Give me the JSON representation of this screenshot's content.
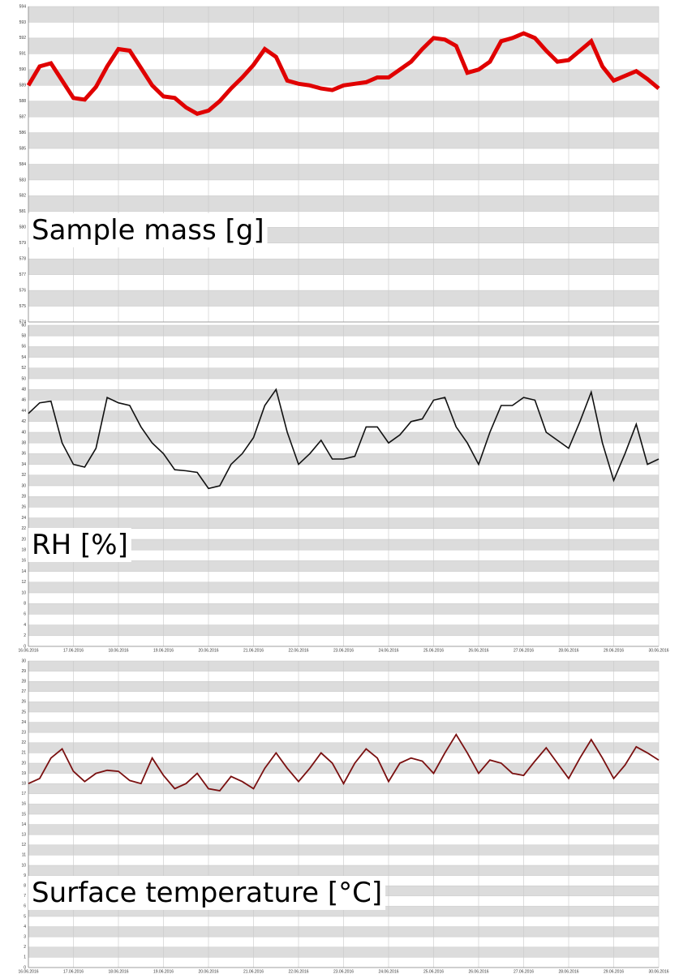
{
  "chart_data": [
    {
      "type": "line",
      "annotation": "Sample mass [g]",
      "color": "#e00000",
      "x": [
        0,
        0.25,
        0.5,
        0.75,
        1,
        1.25,
        1.5,
        1.75,
        2,
        2.25,
        2.5,
        2.75,
        3,
        3.25,
        3.5,
        3.75,
        4,
        4.25,
        4.5,
        4.75,
        5,
        5.25,
        5.5,
        5.75,
        6,
        6.25,
        6.5,
        6.75,
        7,
        7.25,
        7.5,
        7.75,
        8,
        8.25,
        8.5,
        8.75,
        9,
        9.25,
        9.5,
        9.75,
        10,
        10.25,
        10.5,
        10.75,
        11,
        11.25,
        11.5,
        11.75,
        12,
        12.25,
        12.5,
        12.75,
        13,
        13.25,
        13.5,
        13.75,
        14
      ],
      "values": [
        589.0,
        590.2,
        590.4,
        589.3,
        588.2,
        588.1,
        588.9,
        590.2,
        591.3,
        591.2,
        590.1,
        589.0,
        588.3,
        588.2,
        587.6,
        587.2,
        587.4,
        588.0,
        588.8,
        589.5,
        590.3,
        591.3,
        590.8,
        589.3,
        589.1,
        589.0,
        588.8,
        588.7,
        589.0,
        589.1,
        589.2,
        589.5,
        589.5,
        590.0,
        590.5,
        591.3,
        592.0,
        591.9,
        591.5,
        589.8,
        590.0,
        590.5,
        591.8,
        592.0,
        592.3,
        592.0,
        591.2,
        590.5,
        590.6,
        591.2,
        591.8,
        590.2,
        589.3,
        589.6,
        589.9,
        589.4,
        588.8
      ],
      "xlim": [
        0,
        14
      ],
      "xticks": [
        0,
        1,
        2,
        3,
        4,
        5,
        6,
        7,
        8,
        9,
        10,
        11,
        12,
        13,
        14
      ],
      "ylim": [
        574,
        594
      ],
      "yticks": [
        574,
        575,
        576,
        577,
        578,
        579,
        580,
        581,
        582,
        583,
        584,
        585,
        586,
        587,
        588,
        589,
        590,
        591,
        592,
        593,
        594
      ],
      "grid": true
    },
    {
      "type": "line",
      "annotation": "RH [%]",
      "color": "#111111",
      "x": [
        0,
        0.25,
        0.5,
        0.75,
        1,
        1.25,
        1.5,
        1.75,
        2,
        2.25,
        2.5,
        2.75,
        3,
        3.25,
        3.5,
        3.75,
        4,
        4.25,
        4.5,
        4.75,
        5,
        5.25,
        5.5,
        5.75,
        6,
        6.25,
        6.5,
        6.75,
        7,
        7.25,
        7.5,
        7.75,
        8,
        8.25,
        8.5,
        8.75,
        9,
        9.25,
        9.5,
        9.75,
        10,
        10.25,
        10.5,
        10.75,
        11,
        11.25,
        11.5,
        11.75,
        12,
        12.25,
        12.5,
        12.75,
        13,
        13.25,
        13.5,
        13.75,
        14
      ],
      "values": [
        43.5,
        45.5,
        45.8,
        38,
        34,
        33.5,
        37,
        46.5,
        45.5,
        45,
        41,
        38,
        36,
        33,
        32.8,
        32.5,
        29.5,
        30,
        34,
        36,
        39,
        45,
        48,
        40,
        34,
        36,
        38.5,
        35,
        35,
        35.5,
        41,
        41,
        38,
        39.5,
        42,
        42.5,
        46,
        46.5,
        41,
        38,
        34,
        40,
        45,
        45,
        46.5,
        46,
        40,
        38.5,
        37,
        42,
        47.5,
        38,
        31,
        36,
        41.5,
        34,
        35
      ],
      "xlim": [
        0,
        14
      ],
      "xticks": [
        {
          "value": 0,
          "label": "16.06.2016"
        },
        {
          "value": 1,
          "label": "17.06.2016"
        },
        {
          "value": 2,
          "label": "18.06.2016"
        },
        {
          "value": 3,
          "label": "19.06.2016"
        },
        {
          "value": 4,
          "label": "20.06.2016"
        },
        {
          "value": 5,
          "label": "21.06.2016"
        },
        {
          "value": 6,
          "label": "22.06.2016"
        },
        {
          "value": 7,
          "label": "23.06.2016"
        },
        {
          "value": 8,
          "label": "24.06.2016"
        },
        {
          "value": 9,
          "label": "25.06.2016"
        },
        {
          "value": 10,
          "label": "26.06.2016"
        },
        {
          "value": 11,
          "label": "27.06.2016"
        },
        {
          "value": 12,
          "label": "28.06.2016"
        },
        {
          "value": 13,
          "label": "29.06.2016"
        },
        {
          "value": 14,
          "label": "30.06.2016"
        }
      ],
      "ylim": [
        0,
        60
      ],
      "yticks": [
        0,
        2,
        4,
        6,
        8,
        10,
        12,
        14,
        16,
        18,
        20,
        22,
        24,
        26,
        28,
        30,
        32,
        34,
        36,
        38,
        40,
        42,
        44,
        46,
        48,
        50,
        52,
        54,
        56,
        58,
        60
      ],
      "grid": true
    },
    {
      "type": "line",
      "annotation": "Surface temperature [°C]",
      "color": "#7a1010",
      "x": [
        0,
        0.25,
        0.5,
        0.75,
        1,
        1.25,
        1.5,
        1.75,
        2,
        2.25,
        2.5,
        2.75,
        3,
        3.25,
        3.5,
        3.75,
        4,
        4.25,
        4.5,
        4.75,
        5,
        5.25,
        5.5,
        5.75,
        6,
        6.25,
        6.5,
        6.75,
        7,
        7.25,
        7.5,
        7.75,
        8,
        8.25,
        8.5,
        8.75,
        9,
        9.25,
        9.5,
        9.75,
        10,
        10.25,
        10.5,
        10.75,
        11,
        11.25,
        11.5,
        11.75,
        12,
        12.25,
        12.5,
        12.75,
        13,
        13.25,
        13.5,
        13.75,
        14
      ],
      "values": [
        18,
        18.5,
        20.5,
        21.4,
        19.2,
        18.2,
        19,
        19.3,
        19.2,
        18.3,
        18,
        20.5,
        18.8,
        17.5,
        18,
        19,
        17.5,
        17.3,
        18.7,
        18.2,
        17.5,
        19.5,
        21,
        19.5,
        18.2,
        19.5,
        21,
        20,
        18,
        20,
        21.4,
        20.5,
        18.2,
        20,
        20.5,
        20.2,
        19,
        21,
        22.8,
        21,
        19,
        20.3,
        20,
        19,
        18.8,
        20.2,
        21.5,
        20,
        18.5,
        20.5,
        22.3,
        20.5,
        18.5,
        19.8,
        21.6,
        21,
        20.3
      ],
      "xlim": [
        0,
        14
      ],
      "xticks": [
        {
          "value": 0,
          "label": "16.06.2016"
        },
        {
          "value": 1,
          "label": "17.06.2016"
        },
        {
          "value": 2,
          "label": "18.06.2016"
        },
        {
          "value": 3,
          "label": "19.06.2016"
        },
        {
          "value": 4,
          "label": "20.06.2016"
        },
        {
          "value": 5,
          "label": "21.06.2016"
        },
        {
          "value": 6,
          "label": "22.06.2016"
        },
        {
          "value": 7,
          "label": "23.06.2016"
        },
        {
          "value": 8,
          "label": "24.06.2016"
        },
        {
          "value": 9,
          "label": "25.06.2016"
        },
        {
          "value": 10,
          "label": "26.06.2016"
        },
        {
          "value": 11,
          "label": "27.06.2016"
        },
        {
          "value": 12,
          "label": "28.06.2016"
        },
        {
          "value": 13,
          "label": "29.06.2016"
        },
        {
          "value": 14,
          "label": "30.06.2016"
        }
      ],
      "ylim": [
        0,
        30
      ],
      "yticks": [
        0,
        1,
        2,
        3,
        4,
        5,
        6,
        7,
        8,
        9,
        10,
        11,
        12,
        13,
        14,
        15,
        16,
        17,
        18,
        19,
        20,
        21,
        22,
        23,
        24,
        25,
        26,
        27,
        28,
        29,
        30
      ],
      "grid": true
    }
  ]
}
